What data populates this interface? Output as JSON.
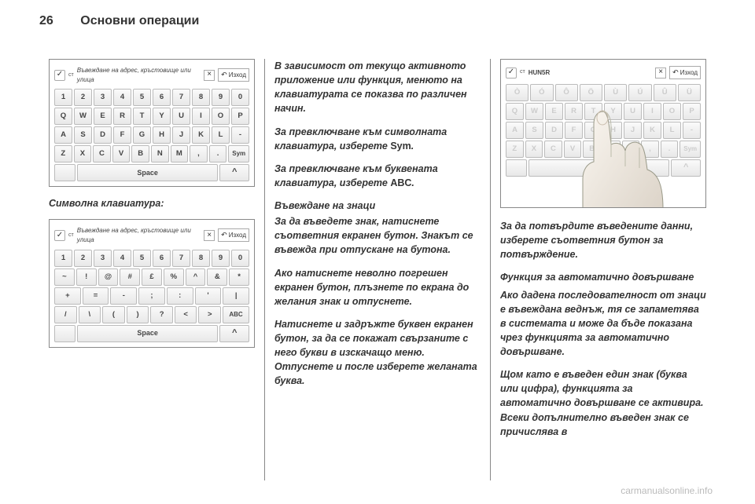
{
  "page": {
    "number": "26",
    "section": "Основни операции"
  },
  "col1": {
    "kbd1": {
      "title_check": "✓",
      "ct": "ст",
      "title": "Въвеждане на адрес, кръстовище или улица",
      "x": "×",
      "exit": "Изход",
      "row_nums": [
        "1",
        "2",
        "3",
        "4",
        "5",
        "6",
        "7",
        "8",
        "9",
        "0"
      ],
      "row_q": [
        "Q",
        "W",
        "E",
        "R",
        "T",
        "Y",
        "U",
        "I",
        "O",
        "P"
      ],
      "row_a": [
        "A",
        "S",
        "D",
        "F",
        "G",
        "H",
        "J",
        "K",
        "L",
        "-"
      ],
      "row_z": [
        "Z",
        "X",
        "C",
        "V",
        "B",
        "N",
        "M",
        ",",
        ".",
        "Sym"
      ],
      "space": "Space",
      "caret": "^"
    },
    "caption": "Символна клавиатура:",
    "kbd2": {
      "title_check": "✓",
      "ct": "ст",
      "title": "Въвеждане на адрес, кръстовище или улица",
      "x": "×",
      "exit": "Изход",
      "row_nums": [
        "1",
        "2",
        "3",
        "4",
        "5",
        "6",
        "7",
        "8",
        "9",
        "0"
      ],
      "row_q": [
        "~",
        "!",
        "@",
        "#",
        "£",
        "%",
        "^",
        "&",
        "*"
      ],
      "row_a": [
        "+",
        "=",
        "-",
        ";",
        ":",
        "'",
        "|"
      ],
      "row_z": [
        "/",
        "\\",
        "(",
        ")",
        "?",
        "<",
        ">",
        "ABC"
      ],
      "space": "Space",
      "caret": "^"
    }
  },
  "col2": {
    "p1": "В зависимост от текущо активното приложение или функция, менюто на клавиатурата се показва по различен начин.",
    "p2a": "За превключване към символната клавиатура, изберете ",
    "p2b": "Sym",
    "p2c": ".",
    "p3a": "За превключване към буквената клавиатура, изберете ",
    "p3b": "ABC",
    "p3c": ".",
    "h1": "Въвеждане на знаци",
    "p4": "За да въведете знак, натиснете съответния екранен бутон. Знакът се въвежда при отпускане на бутона.",
    "p5": "Ако натиснете неволно погрешен екранен бутон, плъзнете по екрана до желания знак и отпуснете.",
    "p6": "Натиснете и задръжте буквен екранен бутон, за да се покажат свързаните с него букви в изскачащо меню. Отпуснете и после изберете желаната буква."
  },
  "col3": {
    "kbd3": {
      "title_check": "✓",
      "ct": "ст",
      "title": "HUN5R",
      "x": "×",
      "exit": "Изход",
      "row_nums": [
        "Ò",
        "Ó",
        "Ô",
        "Ö",
        "Ù",
        "Ú",
        "Û",
        "Ü"
      ],
      "row_q": [
        "Q",
        "W",
        "E",
        "R",
        "T",
        "Y",
        "U",
        "I",
        "O",
        "P"
      ],
      "row_a": [
        "A",
        "S",
        "D",
        "F",
        "G",
        "H",
        "J",
        "K",
        "L",
        "-"
      ],
      "row_z": [
        "Z",
        "X",
        "C",
        "V",
        "B",
        "N",
        "M",
        ",",
        ".",
        "Sym"
      ],
      "space": "Space",
      "caret": "^"
    },
    "p1": "За да потвърдите въведените данни, изберете съответния бутон за потвърждение.",
    "h1": "Функция за автоматично довършване",
    "p2": "Ако дадена последователност от знаци е въвеждана веднъж, тя се запаметява в системата и може да бъде показана чрез функцията за автоматично довършване.",
    "p3": "Щом като е въведен един знак (буква или цифра), функцията за автоматично довършване се активира. Всеки допълнително въведен знак се причислява в"
  },
  "footer": {
    "url": "carmanualsonline.info"
  }
}
